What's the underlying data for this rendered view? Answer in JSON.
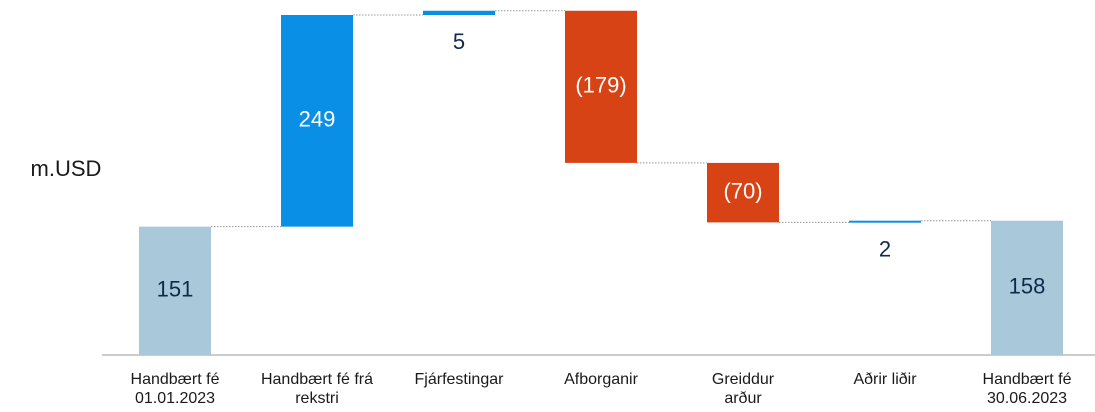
{
  "chart_data": {
    "type": "waterfall",
    "axis_label": "m.USD",
    "categories": [
      "Handbært fé 01.01.2023",
      "Handbært fé frá rekstri",
      "Fjárfestingar",
      "Afborganir",
      "Greiddur arður",
      "Aðrir liðir",
      "Handbært fé 30.06.2023"
    ],
    "values": [
      151,
      249,
      5,
      -179,
      -70,
      2,
      158
    ],
    "value_labels": [
      "151",
      "249",
      "5",
      "(179)",
      "(70)",
      "2",
      "158"
    ],
    "measure": [
      "total",
      "increase",
      "increase",
      "decrease",
      "decrease",
      "increase",
      "total"
    ],
    "colors": {
      "total": "#a9c8da",
      "increase": "#0a8fe6",
      "decrease": "#d84316"
    },
    "ylim": [
      0,
      410
    ]
  }
}
